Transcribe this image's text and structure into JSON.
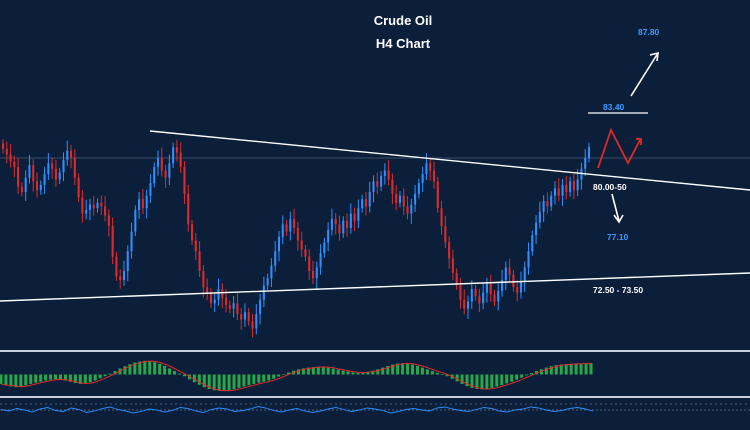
{
  "chart_data": [
    {
      "type": "candlestick",
      "title": "Crude Oil",
      "subtitle": "H4 Chart",
      "colors": {
        "background": "#0b1f3a",
        "bull": "#2e8fff",
        "bear": "#e02a2a",
        "trendline": "#ffffff",
        "projection_up": "#ffffff",
        "projection_down": "#ffffff",
        "zigzag": "#e02a2a",
        "level_label": "#3d9bff"
      },
      "price_range": [
        70.0,
        89.5
      ],
      "levels": [
        {
          "label": "87.80",
          "price": 87.8,
          "color": "#3d9bff"
        },
        {
          "label": "83.40",
          "price": 83.4,
          "color": "#3d9bff"
        },
        {
          "label": "80.00-50",
          "price": 80.25,
          "color": "#ffffff"
        },
        {
          "label": "77.10",
          "price": 77.1,
          "color": "#3d9bff"
        },
        {
          "label": "72.50 - 73.50",
          "price": 73.0,
          "color": "#ffffff"
        }
      ],
      "close": [
        81.2,
        80.9,
        80.5,
        80.2,
        79.1,
        78.8,
        79.6,
        80.3,
        79.4,
        78.9,
        79.2,
        79.8,
        80.4,
        80.1,
        79.5,
        79.9,
        80.6,
        81.1,
        80.7,
        79.6,
        78.5,
        77.6,
        77.8,
        78.1,
        77.9,
        78.2,
        78.0,
        77.5,
        76.9,
        75.2,
        74.1,
        73.9,
        74.4,
        75.5,
        76.6,
        77.8,
        78.4,
        77.9,
        78.6,
        79.3,
        80.2,
        80.7,
        80.0,
        79.6,
        80.4,
        81.3,
        81.0,
        80.2,
        78.7,
        77.0,
        76.1,
        75.5,
        74.4,
        73.5,
        73.2,
        72.6,
        72.8,
        73.4,
        72.9,
        72.5,
        72.3,
        72.6,
        72.0,
        71.7,
        72.1,
        71.6,
        71.2,
        72.0,
        72.8,
        73.6,
        74.0,
        74.7,
        75.5,
        76.3,
        77.0,
        76.6,
        77.3,
        76.8,
        76.1,
        75.6,
        75.2,
        74.4,
        74.0,
        74.6,
        75.4,
        76.0,
        76.7,
        77.3,
        77.0,
        76.5,
        77.2,
        76.8,
        77.6,
        77.2,
        77.9,
        78.4,
        78.0,
        78.8,
        79.4,
        79.1,
        79.7,
        80.0,
        79.5,
        78.7,
        78.2,
        78.6,
        78.0,
        77.6,
        78.1,
        78.7,
        79.3,
        79.8,
        80.4,
        80.0,
        79.4,
        77.9,
        76.9,
        76.0,
        75.1,
        74.3,
        73.6,
        72.8,
        72.3,
        72.7,
        73.4,
        73.0,
        72.6,
        73.2,
        73.7,
        73.1,
        72.7,
        73.3,
        73.9,
        74.6,
        74.2,
        73.5,
        73.2,
        73.8,
        74.6,
        75.5,
        76.4,
        77.1,
        77.7,
        78.3,
        78.0,
        78.6,
        79.0,
        78.6,
        79.2,
        78.8,
        79.4,
        78.9,
        79.5,
        80.1,
        80.7,
        81.3
      ]
    },
    {
      "type": "histogram",
      "colors": {
        "positive": "#27a84a",
        "negative": "#27a84a",
        "signal": "#e02a2a",
        "background": "#0b1f3a"
      },
      "values": [
        -0.55,
        -0.62,
        -0.7,
        -0.74,
        -0.7,
        -0.63,
        -0.55,
        -0.48,
        -0.42,
        -0.35,
        -0.3,
        -0.28,
        -0.3,
        -0.35,
        -0.42,
        -0.5,
        -0.55,
        -0.52,
        -0.45,
        -0.35,
        -0.22,
        -0.1,
        0.05,
        0.2,
        0.35,
        0.48,
        0.6,
        0.7,
        0.76,
        0.8,
        0.78,
        0.72,
        0.62,
        0.5,
        0.35,
        0.2,
        0.05,
        -0.1,
        -0.28,
        -0.45,
        -0.6,
        -0.74,
        -0.85,
        -0.92,
        -0.95,
        -0.96,
        -0.92,
        -0.86,
        -0.78,
        -0.7,
        -0.62,
        -0.55,
        -0.48,
        -0.42,
        -0.35,
        -0.25,
        -0.12,
        0.0,
        0.12,
        0.22,
        0.3,
        0.36,
        0.4,
        0.43,
        0.45,
        0.44,
        0.4,
        0.34,
        0.28,
        0.22,
        0.17,
        0.12,
        0.1,
        0.12,
        0.16,
        0.22,
        0.3,
        0.4,
        0.5,
        0.58,
        0.64,
        0.66,
        0.64,
        0.58,
        0.5,
        0.4,
        0.3,
        0.2,
        0.1,
        0.02,
        -0.1,
        -0.25,
        -0.4,
        -0.55,
        -0.68,
        -0.78,
        -0.84,
        -0.86,
        -0.84,
        -0.78,
        -0.7,
        -0.62,
        -0.52,
        -0.42,
        -0.3,
        -0.18,
        -0.05,
        0.08,
        0.2,
        0.3,
        0.4,
        0.48,
        0.54,
        0.58,
        0.6,
        0.62,
        0.63,
        0.64,
        0.65,
        0.66
      ]
    },
    {
      "type": "line",
      "colors": {
        "line": "#2e8fff",
        "dashed": "#8aa0c0",
        "background": "#0b1f3a"
      },
      "values": [
        0.1,
        -0.2,
        0.3,
        0.0,
        -0.4,
        0.2,
        0.5,
        -0.1,
        -0.3,
        0.4,
        0.1,
        -0.5,
        -0.2,
        0.3,
        0.6,
        0.1,
        -0.2,
        -0.6,
        -0.3,
        0.2,
        0.0,
        -0.4,
        -0.1,
        0.5,
        0.3,
        -0.2,
        -0.5,
        0.1,
        0.4,
        0.2,
        -0.3,
        -0.1,
        0.2,
        0.7,
        0.4,
        -0.1,
        -0.4,
        0.0,
        0.3,
        -0.2,
        -0.5,
        -0.2,
        0.2,
        0.5,
        0.1,
        -0.3,
        0.0,
        0.4,
        0.2,
        -0.1,
        -0.6,
        -0.3,
        0.1,
        0.3,
        0.0,
        -0.2,
        0.4,
        0.6,
        0.2,
        -0.1,
        -0.3,
        0.1,
        0.5,
        0.3,
        -0.2,
        -0.4,
        0.0,
        0.2,
        0.6,
        0.4,
        0.0,
        -0.3,
        -0.1,
        0.3,
        0.5,
        0.2,
        -0.2
      ]
    }
  ]
}
